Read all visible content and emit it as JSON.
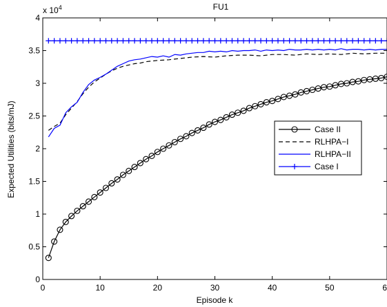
{
  "chart_data": {
    "type": "line",
    "title": "FU1",
    "xlabel": "Episode k",
    "ylabel": "Expected Utilities (bits/mJ)",
    "y_multiplier": "x 10",
    "y_multiplier_exp": "4",
    "xlim": [
      0,
      60
    ],
    "ylim": [
      0,
      4
    ],
    "xticks": [
      0,
      10,
      20,
      30,
      40,
      50,
      60
    ],
    "yticks": [
      0,
      0.5,
      1,
      1.5,
      2,
      2.5,
      3,
      3.5,
      4
    ],
    "xtick_labels": [
      "0",
      "10",
      "20",
      "30",
      "40",
      "50",
      "60"
    ],
    "ytick_labels": [
      "0",
      "0.5",
      "1",
      "1.5",
      "2",
      "2.5",
      "3",
      "3.5",
      "4"
    ],
    "grid": false,
    "legend_position": "right",
    "series": [
      {
        "name": "Case II",
        "color": "#000000",
        "style": "solid",
        "marker": "circle",
        "x": [
          1,
          2,
          3,
          4,
          5,
          6,
          7,
          8,
          9,
          10,
          11,
          12,
          13,
          14,
          15,
          16,
          17,
          18,
          19,
          20,
          21,
          22,
          23,
          24,
          25,
          26,
          27,
          28,
          29,
          30,
          31,
          32,
          33,
          34,
          35,
          36,
          37,
          38,
          39,
          40,
          41,
          42,
          43,
          44,
          45,
          46,
          47,
          48,
          49,
          50,
          51,
          52,
          53,
          54,
          55,
          56,
          57,
          58,
          59,
          60
        ],
        "values": [
          0.33,
          0.58,
          0.76,
          0.88,
          0.97,
          1.05,
          1.12,
          1.19,
          1.26,
          1.33,
          1.4,
          1.47,
          1.53,
          1.6,
          1.66,
          1.72,
          1.78,
          1.84,
          1.89,
          1.95,
          2.0,
          2.05,
          2.1,
          2.15,
          2.19,
          2.24,
          2.28,
          2.32,
          2.37,
          2.41,
          2.44,
          2.48,
          2.52,
          2.55,
          2.58,
          2.62,
          2.65,
          2.68,
          2.71,
          2.73,
          2.76,
          2.79,
          2.81,
          2.83,
          2.86,
          2.88,
          2.9,
          2.92,
          2.94,
          2.95,
          2.97,
          2.99,
          3.0,
          3.02,
          3.03,
          3.05,
          3.06,
          3.07,
          3.08,
          3.1
        ]
      },
      {
        "name": "RLHPA−I",
        "color": "#000000",
        "style": "dashed",
        "marker": "none",
        "x": [
          1,
          2,
          3,
          4,
          5,
          6,
          7,
          8,
          9,
          10,
          11,
          12,
          13,
          14,
          15,
          16,
          17,
          18,
          19,
          20,
          22,
          24,
          26,
          28,
          30,
          32,
          34,
          36,
          38,
          40,
          42,
          44,
          46,
          48,
          50,
          52,
          54,
          56,
          58,
          60
        ],
        "values": [
          2.28,
          2.34,
          2.39,
          2.52,
          2.62,
          2.72,
          2.84,
          2.94,
          3.02,
          3.08,
          3.14,
          3.19,
          3.23,
          3.26,
          3.28,
          3.3,
          3.31,
          3.33,
          3.34,
          3.35,
          3.36,
          3.38,
          3.4,
          3.41,
          3.4,
          3.42,
          3.43,
          3.43,
          3.42,
          3.44,
          3.44,
          3.43,
          3.45,
          3.44,
          3.45,
          3.44,
          3.46,
          3.45,
          3.46,
          3.46
        ]
      },
      {
        "name": "RLHPA−II",
        "color": "#0000ff",
        "style": "solid",
        "marker": "none",
        "x": [
          1,
          2,
          3,
          4,
          5,
          6,
          7,
          8,
          9,
          10,
          11,
          12,
          13,
          14,
          15,
          16,
          17,
          18,
          19,
          20,
          21,
          22,
          23,
          24,
          25,
          26,
          27,
          28,
          29,
          30,
          31,
          32,
          33,
          34,
          35,
          36,
          37,
          38,
          39,
          40,
          41,
          42,
          43,
          44,
          45,
          46,
          47,
          48,
          49,
          50,
          51,
          52,
          53,
          54,
          55,
          56,
          57,
          58,
          59,
          60
        ],
        "values": [
          2.18,
          2.31,
          2.36,
          2.55,
          2.64,
          2.71,
          2.86,
          2.98,
          3.05,
          3.09,
          3.14,
          3.2,
          3.26,
          3.3,
          3.34,
          3.36,
          3.37,
          3.39,
          3.41,
          3.4,
          3.42,
          3.4,
          3.44,
          3.43,
          3.45,
          3.46,
          3.47,
          3.47,
          3.49,
          3.48,
          3.49,
          3.48,
          3.5,
          3.49,
          3.5,
          3.5,
          3.51,
          3.49,
          3.51,
          3.5,
          3.51,
          3.5,
          3.52,
          3.51,
          3.51,
          3.52,
          3.51,
          3.52,
          3.51,
          3.52,
          3.51,
          3.53,
          3.51,
          3.52,
          3.52,
          3.51,
          3.52,
          3.51,
          3.52,
          3.52
        ]
      },
      {
        "name": "Case I",
        "color": "#0000ff",
        "style": "solid",
        "marker": "plus",
        "x": [
          1,
          2,
          3,
          4,
          5,
          6,
          7,
          8,
          9,
          10,
          11,
          12,
          13,
          14,
          15,
          16,
          17,
          18,
          19,
          20,
          21,
          22,
          23,
          24,
          25,
          26,
          27,
          28,
          29,
          30,
          31,
          32,
          33,
          34,
          35,
          36,
          37,
          38,
          39,
          40,
          41,
          42,
          43,
          44,
          45,
          46,
          47,
          48,
          49,
          50,
          51,
          52,
          53,
          54,
          55,
          56,
          57,
          58,
          59,
          60
        ],
        "values": [
          3.65,
          3.65,
          3.65,
          3.65,
          3.65,
          3.65,
          3.65,
          3.65,
          3.65,
          3.65,
          3.65,
          3.65,
          3.65,
          3.65,
          3.65,
          3.65,
          3.65,
          3.65,
          3.65,
          3.65,
          3.65,
          3.65,
          3.65,
          3.65,
          3.65,
          3.65,
          3.65,
          3.65,
          3.65,
          3.65,
          3.65,
          3.65,
          3.65,
          3.65,
          3.65,
          3.65,
          3.65,
          3.65,
          3.65,
          3.65,
          3.65,
          3.65,
          3.65,
          3.65,
          3.65,
          3.65,
          3.65,
          3.65,
          3.65,
          3.65,
          3.65,
          3.65,
          3.65,
          3.65,
          3.65,
          3.65,
          3.65,
          3.65,
          3.65,
          3.65
        ]
      }
    ]
  }
}
